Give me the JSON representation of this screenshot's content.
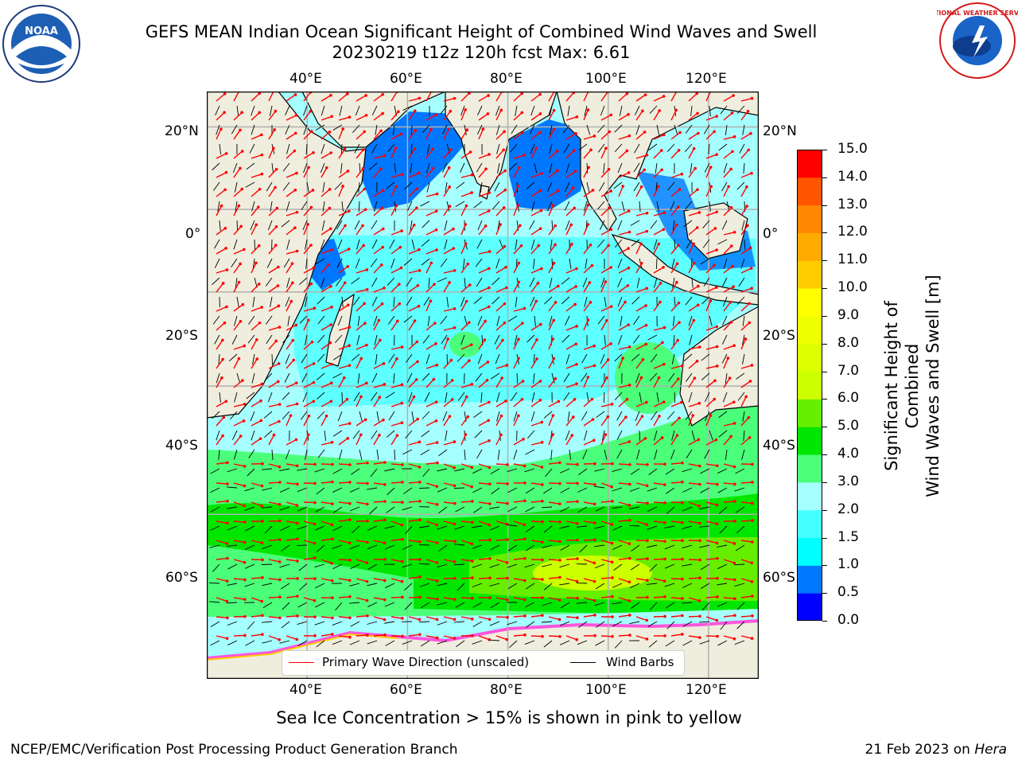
{
  "title_line1": "GEFS MEAN Indian Ocean Significant Height of Combined Wind Waves and Swell",
  "title_line2": "20230219 t12z 120h fcst   Max: 6.61",
  "logos": {
    "left": "noaa-logo",
    "right": "national-weather-service-logo",
    "left_text": "NOAA",
    "right_text": "NATIONAL WEATHER SERVICE"
  },
  "axes": {
    "lon_ticks": [
      "40°E",
      "60°E",
      "80°E",
      "100°E",
      "120°E"
    ],
    "lon_values": [
      40,
      60,
      80,
      100,
      120
    ],
    "lat_ticks_left": [
      "20°N",
      "0°",
      "20°S",
      "40°S",
      "60°S"
    ],
    "lat_ticks_right": [
      "20°N",
      "0°",
      "20°S",
      "40°S",
      "60°S"
    ],
    "lat_values": [
      20,
      0,
      -20,
      -40,
      -60
    ],
    "lon_range": [
      20,
      130
    ],
    "lat_range": [
      -75,
      28
    ],
    "grid": true
  },
  "colorbar": {
    "label": "Significant Height of Combined Wind Waves and Swell [m]",
    "label_line1": "Significant Height of Combined",
    "label_line2": "Wind Waves and Swell [m]",
    "ticks": [
      "15.0",
      "14.0",
      "13.0",
      "12.0",
      "11.0",
      "10.0",
      "9.0",
      "8.0",
      "7.0",
      "6.0",
      "5.0",
      "4.0",
      "3.0",
      "2.0",
      "1.5",
      "1.0",
      "0.5",
      "0.0"
    ],
    "bins": [
      {
        "range": [
          0.0,
          0.5
        ],
        "color": "#0000ff"
      },
      {
        "range": [
          0.5,
          1.0
        ],
        "color": "#0077ff"
      },
      {
        "range": [
          1.0,
          1.5
        ],
        "color": "#00ffff"
      },
      {
        "range": [
          1.5,
          2.0
        ],
        "color": "#44ffff"
      },
      {
        "range": [
          2.0,
          3.0
        ],
        "color": "#a6ffff"
      },
      {
        "range": [
          3.0,
          4.0
        ],
        "color": "#4cff7a"
      },
      {
        "range": [
          4.0,
          5.0
        ],
        "color": "#00e600"
      },
      {
        "range": [
          5.0,
          6.0
        ],
        "color": "#66ee00"
      },
      {
        "range": [
          6.0,
          7.0
        ],
        "color": "#ccff00"
      },
      {
        "range": [
          7.0,
          8.0
        ],
        "color": "#ddff00"
      },
      {
        "range": [
          8.0,
          9.0
        ],
        "color": "#eeff00"
      },
      {
        "range": [
          9.0,
          10.0
        ],
        "color": "#ffff00"
      },
      {
        "range": [
          10.0,
          11.0
        ],
        "color": "#ffcc00"
      },
      {
        "range": [
          11.0,
          12.0
        ],
        "color": "#ffaa00"
      },
      {
        "range": [
          12.0,
          13.0
        ],
        "color": "#ff8800"
      },
      {
        "range": [
          13.0,
          14.0
        ],
        "color": "#ff5500"
      },
      {
        "range": [
          14.0,
          15.0
        ],
        "color": "#ff0000"
      }
    ]
  },
  "legend": {
    "wave_label": "Primary Wave Direction (unscaled)",
    "wind_label": "Wind Barbs",
    "wave_color": "#ff0000",
    "wind_color": "#000000"
  },
  "bottom_note": "Sea Ice Concentration > 15% is shown in pink to yellow",
  "footer_left": "NCEP/EMC/Verification Post Processing Product Generation Branch",
  "footer_right_date": "21 Feb 2023 on ",
  "footer_right_machine": "Hera",
  "colors": {
    "land": "#efeddd",
    "grid": "#b0b0b0",
    "frame": "#000000"
  }
}
